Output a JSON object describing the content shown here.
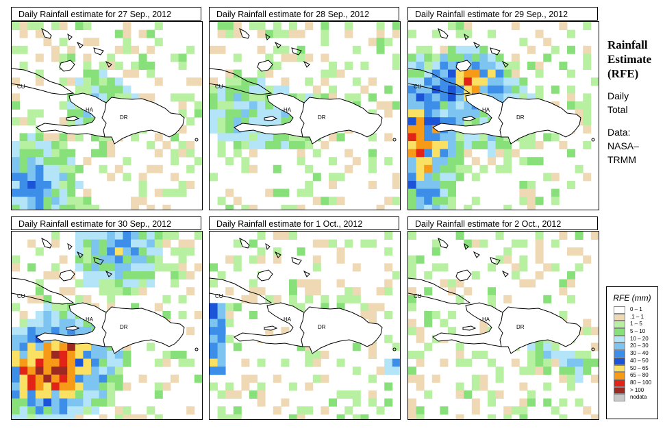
{
  "panels": [
    {
      "title": "Daily Rainfall estimate for  27 Sep., 2012",
      "seed": 27,
      "hotspot": "west-low"
    },
    {
      "title": "Daily Rainfall estimate for  28 Sep., 2012",
      "seed": 28,
      "hotspot": "light"
    },
    {
      "title": "Daily Rainfall estimate for  29 Sep., 2012",
      "seed": 29,
      "hotspot": "west-heavy"
    },
    {
      "title": "Daily Rainfall estimate for  30 Sep., 2012",
      "seed": 30,
      "hotspot": "southwest-heavy"
    },
    {
      "title": "Daily Rainfall estimate for  1 Oct., 2012",
      "seed": 1,
      "hotspot": "edge"
    },
    {
      "title": "Daily Rainfall estimate for  2 Oct., 2012",
      "seed": 2,
      "hotspot": "sparse"
    }
  ],
  "map_labels": {
    "cuba": "CU",
    "haiti": "HA",
    "dominican_republic": "DR"
  },
  "side": {
    "title_lines": [
      "Rainfall",
      "Estimate",
      "(RFE)"
    ],
    "period_lines": [
      "Daily",
      "Total"
    ],
    "source_lines": [
      "Data:",
      "NASA–",
      "TRMM"
    ]
  },
  "legend": {
    "title": "RFE (mm)",
    "entries": [
      {
        "label": "0 – 1",
        "color": "#ffffff"
      },
      {
        "label": ".1 – 1",
        "color": "#efd9b4"
      },
      {
        "label": "1 – 5",
        "color": "#b7f0a0"
      },
      {
        "label": "5 – 10",
        "color": "#88e07a"
      },
      {
        "label": "10 – 20",
        "color": "#b4e4f8"
      },
      {
        "label": "20 – 30",
        "color": "#7ec4f0"
      },
      {
        "label": "30 – 40",
        "color": "#3c8ee8"
      },
      {
        "label": "40 – 50",
        "color": "#1c54d8"
      },
      {
        "label": "50 – 65",
        "color": "#fae063"
      },
      {
        "label": "65 – 80",
        "color": "#f79a18"
      },
      {
        "label": "80 – 100",
        "color": "#e22318"
      },
      {
        "label": "> 100",
        "color": "#9c2a22"
      },
      {
        "label": "nodata",
        "color": "#c8c8c8"
      }
    ]
  }
}
